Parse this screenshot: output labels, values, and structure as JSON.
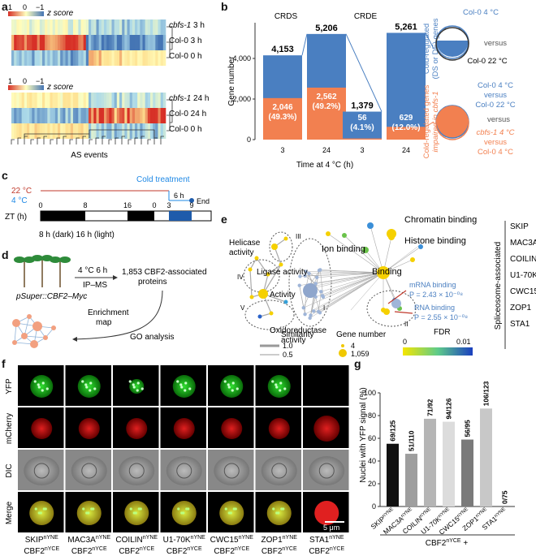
{
  "panel_labels": {
    "a": "a",
    "b": "b",
    "c": "c",
    "d": "d",
    "e": "e",
    "f": "f",
    "g": "g"
  },
  "colors": {
    "blue": "#4a7fc1",
    "orange": "#f28050",
    "red": "#d73027",
    "green": "#17e017",
    "heat_high": "#d73027",
    "heat_low": "#4575b4"
  },
  "panel_a": {
    "scale_ticks": [
      "1",
      "0",
      "−1"
    ],
    "scale_label": "z score",
    "rows_3h": [
      {
        "name": "cbfs-1",
        "suffix": " 3 h"
      },
      {
        "name": "Col-0 3 h",
        "suffix": ""
      },
      {
        "name": "Col-0 0 h",
        "suffix": ""
      }
    ],
    "rows_24h": [
      {
        "name": "cbfs-1",
        "suffix": " 24 h"
      },
      {
        "name": "Col-0 24 h",
        "suffix": ""
      },
      {
        "name": "Col-0 0 h",
        "suffix": ""
      }
    ],
    "xlabel": "AS events"
  },
  "panel_b": {
    "chart_data": {
      "type": "bar",
      "groups": [
        "CRDS",
        "CRDE"
      ],
      "categories": [
        "3",
        "24",
        "3",
        "24"
      ],
      "series": [
        {
          "values": [
            4153,
            5206,
            1379,
            5261
          ]
        },
        {
          "values": [
            2046,
            2562,
            56,
            629
          ]
        }
      ],
      "top_labels": [
        "4,153",
        "5,206",
        "1,379",
        "5,261"
      ],
      "inner_labels": [
        [
          "2,046",
          "(49.3%)"
        ],
        [
          "2,562",
          "(49.2%)"
        ],
        [
          "56",
          "(4.1%)"
        ],
        [
          "629",
          "(12.0%)"
        ]
      ],
      "ylabel": "Gene number",
      "xlabel": "Time at 4 °C (h)",
      "yticks": [
        "0",
        "2,000",
        "4,000"
      ],
      "ylim": [
        0,
        5600
      ]
    },
    "side_blue": [
      "Cold-regulated",
      "(DS or DE) genes"
    ],
    "side_orange": [
      "Cold-regulated genes",
      "impaired in cbfs-1"
    ],
    "venn1": {
      "top": "Col-0 4 °C",
      "mid": "versus",
      "bottom": "Col-0 22 °C"
    },
    "venn2": {
      "t1": "Col-0 4 °C",
      "t2": "versus",
      "t3": "Col-0 22 °C",
      "t4": "versus",
      "b1": "cbfs-1 4 °C",
      "b2": "versus",
      "b3": "Col-0 4 °C"
    }
  },
  "panel_c": {
    "t22": "22 °C",
    "t4": "4 °C",
    "cold": "Cold treatment",
    "six_h": "6 h",
    "end": "End",
    "zt_label": "ZT (h)",
    "ticks": [
      "0",
      "8",
      "16",
      "0",
      "3",
      "9"
    ],
    "legend": "8 h (dark)  16 h (light)"
  },
  "panel_d": {
    "temp": "4 °C 6 h",
    "method": "IP–MS",
    "proteins": [
      "1,853 CBF2-associated",
      "proteins"
    ],
    "construct": "pSuper::CBF2–Myc",
    "enrichment": [
      "Enrichment",
      "map"
    ],
    "go": "GO analysis"
  },
  "panel_e": {
    "left_labels": [
      "Helicase",
      "activity",
      "Ligase activity",
      "Activity",
      "Oxidoreductase",
      "activity",
      "III",
      "IV",
      "V"
    ],
    "right_labels": [
      "Chromatin binding",
      "Histone binding",
      "Ion binding",
      "Binding",
      "I",
      "II"
    ],
    "mrna": [
      "mRNA binding",
      "P = 2.43 × 10⁻⁰⁸"
    ],
    "rna": [
      "RNA binding",
      "P = 2.55 × 10⁻⁰⁸"
    ],
    "spliceosome_title": "Spliceosome-associated",
    "spliceosome_list": [
      "SKIP",
      "MAC3A",
      "COILIN",
      "U1-70K",
      "CWC15",
      "ZOP1",
      "STA1"
    ],
    "similarity": {
      "title": "Similarity",
      "v1": "1.0",
      "v2": "0.5"
    },
    "gene_number": {
      "title": "Gene number",
      "v1": "4",
      "v2": "1,059"
    },
    "fdr": {
      "title": "FDR",
      "v1": "0",
      "v2": "0.01"
    }
  },
  "panel_f": {
    "row_labels": [
      "YFP",
      "mCherry",
      "DIC",
      "Merge"
    ],
    "columns": [
      {
        "top": "SKIP",
        "bottom": "CBF2"
      },
      {
        "top": "MAC3A",
        "bottom": "CBF2"
      },
      {
        "top": "COILIN",
        "bottom": "CBF2"
      },
      {
        "top": "U1-70K",
        "bottom": "CBF2"
      },
      {
        "top": "CWC15",
        "bottom": "CBF2"
      },
      {
        "top": "ZOP1",
        "bottom": "CBF2"
      },
      {
        "top": "STA1",
        "bottom": "CBF2"
      }
    ],
    "sup_top": "nYNE",
    "sup_bottom": "nYCE",
    "scale": "5 μm"
  },
  "panel_g": {
    "chart_data": {
      "type": "bar",
      "categories": [
        "SKIP",
        "MAC3A",
        "COILIN",
        "U1-70K",
        "CWC15",
        "ZOP1",
        "STA1"
      ],
      "cat_sup": "nYNE",
      "values": [
        55.2,
        46.4,
        77.2,
        74.6,
        58.9,
        86.2,
        0
      ],
      "labels": [
        "69/125",
        "51/110",
        "71/92",
        "94/126",
        "56/95",
        "106/123",
        "0/75"
      ],
      "bar_colors": [
        "#111111",
        "#9e9e9e",
        "#b5b5b5",
        "#dcdcdc",
        "#7a7a7a",
        "#c8c8c8",
        "#ffffff"
      ],
      "ylabel": "Nuclei with YFP signal (%)",
      "xlabel": "CBF2",
      "xlabel_sup": "nYCE",
      "xlabel_suffix": " +",
      "yticks": [
        "0",
        "20",
        "40",
        "60",
        "80",
        "100"
      ],
      "ylim": [
        0,
        100
      ]
    }
  }
}
